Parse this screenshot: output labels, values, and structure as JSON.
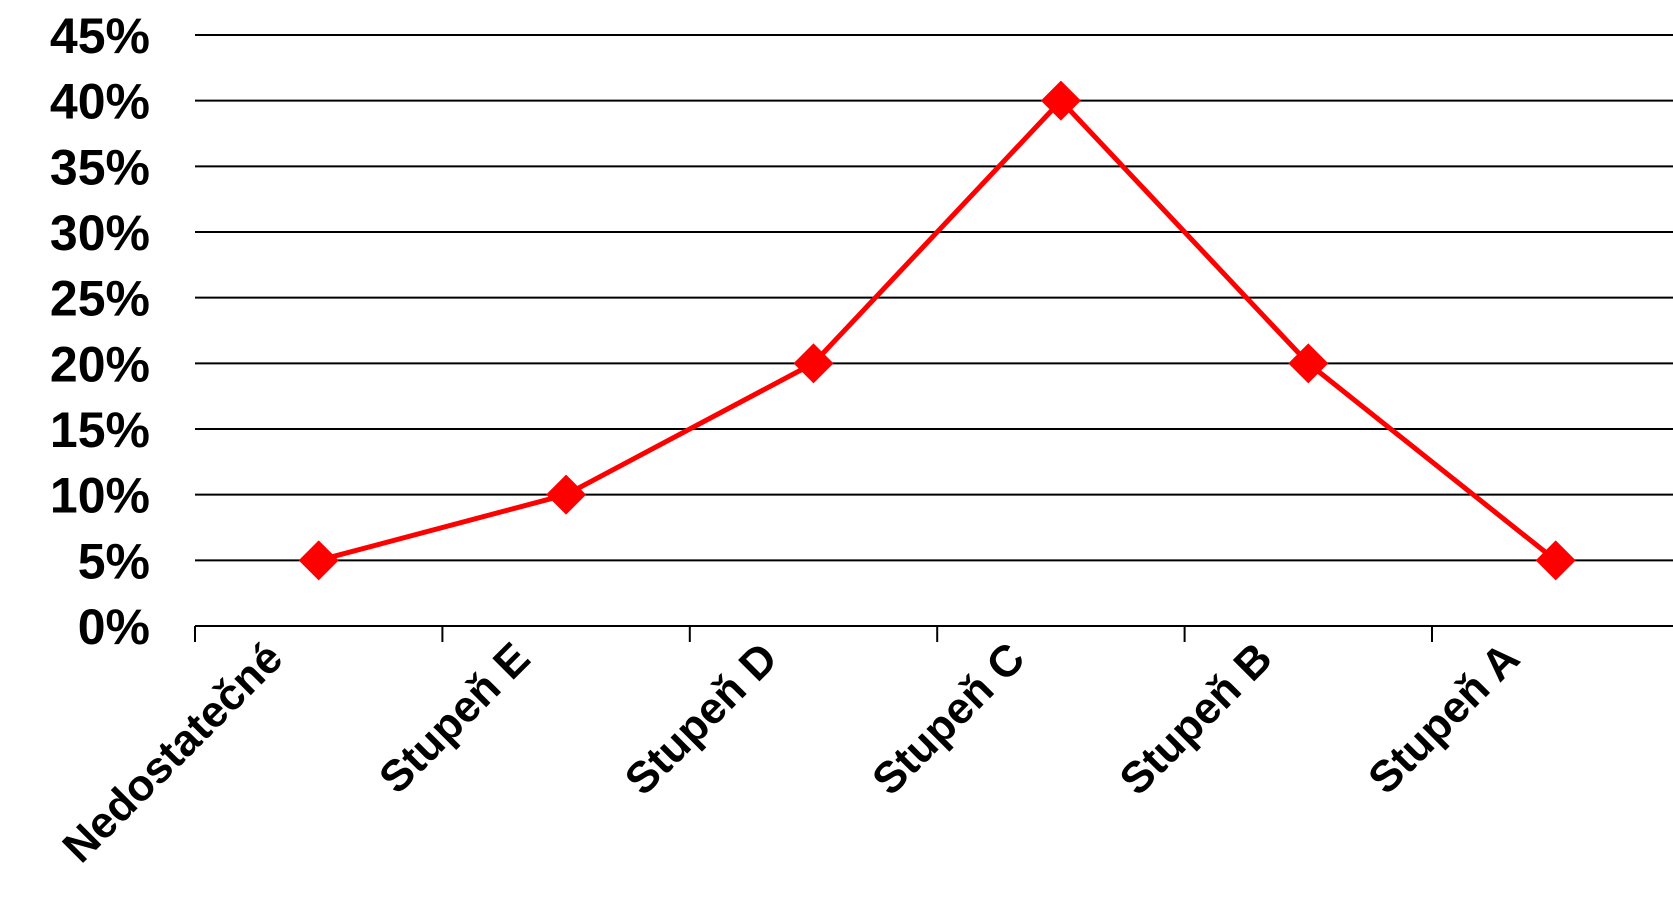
{
  "chart_data": {
    "type": "line",
    "categories": [
      "Nedostatečné",
      "Stupeň E",
      "Stupeň D",
      "Stupeň C",
      "Stupeň B",
      "Stupeň A"
    ],
    "series": [
      {
        "values": [
          5,
          10,
          20,
          40,
          20,
          5
        ]
      }
    ],
    "y_ticks": [
      "0%",
      "5%",
      "10%",
      "15%",
      "20%",
      "25%",
      "30%",
      "35%",
      "40%",
      "45%"
    ],
    "ylim": [
      0,
      45
    ],
    "y_step": 5,
    "grid": true,
    "legend": "none",
    "marker": "diamond",
    "colors": {
      "series": "#ff0000",
      "grid": "#000000",
      "text": "#000000"
    }
  }
}
